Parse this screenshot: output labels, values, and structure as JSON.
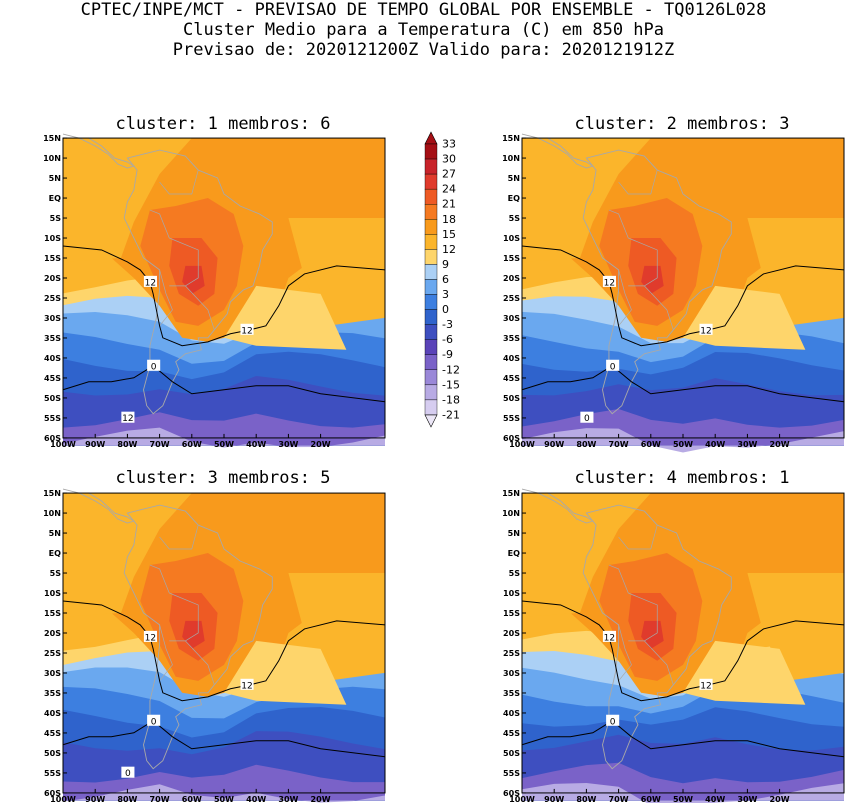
{
  "header": {
    "line1": "CPTEC/INPE/MCT - PREVISAO DE TEMPO GLOBAL POR ENSEMBLE - TQ0126L028",
    "line2": "Cluster Medio para a Temperatura (C) em 850 hPa",
    "line3": "Previsao de: 2020121200Z   Valido para: 2020121912Z"
  },
  "axes": {
    "lat_labels": [
      "15N",
      "10N",
      "5N",
      "EQ",
      "5S",
      "10S",
      "15S",
      "20S",
      "25S",
      "30S",
      "35S",
      "40S",
      "45S",
      "50S",
      "55S",
      "60S"
    ],
    "lon_labels": [
      "100W",
      "90W",
      "80W",
      "70W",
      "60W",
      "50W",
      "40W",
      "30W",
      "20W"
    ]
  },
  "panels": [
    {
      "title": "cluster: 1   membros: 6",
      "contour_labels": [
        "12",
        "12",
        "0",
        "12"
      ]
    },
    {
      "title": "cluster: 2   membros: 3",
      "contour_labels": [
        "12",
        "12",
        "0",
        "0"
      ]
    },
    {
      "title": "cluster: 3   membros: 5",
      "contour_labels": [
        "12",
        "12",
        "0",
        "0"
      ]
    },
    {
      "title": "cluster: 4   membros: 1",
      "contour_labels": [
        "12",
        "12",
        "0"
      ]
    }
  ],
  "colorbar": {
    "labels": [
      "33",
      "30",
      "27",
      "24",
      "21",
      "18",
      "15",
      "12",
      "9",
      "6",
      "3",
      "0",
      "-3",
      "-6",
      "-9",
      "-12",
      "-15",
      "-18",
      "-21"
    ],
    "colors": [
      "#a50f15",
      "#c8232a",
      "#e03b2c",
      "#ee5a24",
      "#f57a21",
      "#f89a1c",
      "#fbb52b",
      "#fed56b",
      "#abd0f5",
      "#6aa8ef",
      "#3d7fe0",
      "#2f63cc",
      "#3e4fc0",
      "#5a43b8",
      "#7a62c8",
      "#9a88d8",
      "#b8abe4",
      "#d6cdf0"
    ]
  },
  "colors": {
    "land": "#a8a8a8",
    "contour": "#000000"
  }
}
